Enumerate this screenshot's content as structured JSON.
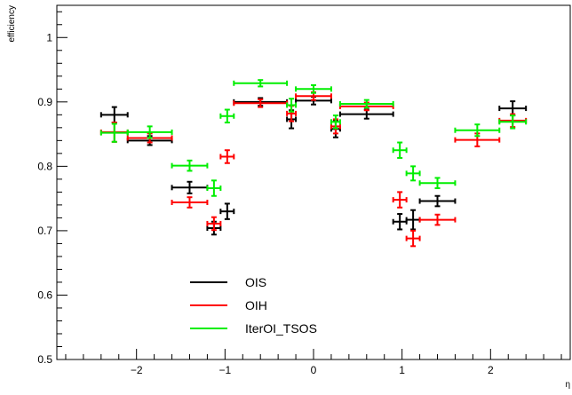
{
  "chart_data": {
    "type": "scatter",
    "title": "",
    "xlabel": "η",
    "ylabel": "efficiency",
    "xlim": [
      -2.9,
      2.9
    ],
    "ylim": [
      0.5,
      1.05
    ],
    "x_ticks": [
      -2,
      -1,
      0,
      1,
      2
    ],
    "x_tick_labels": [
      "−2",
      "−1",
      "0",
      "1",
      "2"
    ],
    "y_ticks": [
      0.5,
      0.6,
      0.7,
      0.8,
      0.9,
      1.0
    ],
    "y_tick_labels": [
      "0.5",
      "0.6",
      "0.7",
      "0.8",
      "0.9",
      "1"
    ],
    "grid": false,
    "legend_position": "bottom-left",
    "series": [
      {
        "name": "OIS",
        "color": "#000000",
        "points": [
          {
            "x": -2.25,
            "xerr": 0.15,
            "y": 0.88,
            "yerr": 0.012
          },
          {
            "x": -1.85,
            "xerr": 0.25,
            "y": 0.84,
            "yerr": 0.007
          },
          {
            "x": -1.4,
            "xerr": 0.2,
            "y": 0.767,
            "yerr": 0.009
          },
          {
            "x": -1.125,
            "xerr": 0.075,
            "y": 0.704,
            "yerr": 0.01
          },
          {
            "x": -0.975,
            "xerr": 0.075,
            "y": 0.73,
            "yerr": 0.012
          },
          {
            "x": -0.6,
            "xerr": 0.3,
            "y": 0.9,
            "yerr": 0.006
          },
          {
            "x": -0.25,
            "xerr": 0.05,
            "y": 0.873,
            "yerr": 0.014
          },
          {
            "x": 0.0,
            "xerr": 0.2,
            "y": 0.902,
            "yerr": 0.006
          },
          {
            "x": 0.25,
            "xerr": 0.05,
            "y": 0.858,
            "yerr": 0.013
          },
          {
            "x": 0.6,
            "xerr": 0.3,
            "y": 0.881,
            "yerr": 0.007
          },
          {
            "x": 0.975,
            "xerr": 0.075,
            "y": 0.714,
            "yerr": 0.012
          },
          {
            "x": 1.125,
            "xerr": 0.075,
            "y": 0.717,
            "yerr": 0.015
          },
          {
            "x": 1.4,
            "xerr": 0.2,
            "y": 0.746,
            "yerr": 0.008
          },
          {
            "x": 2.25,
            "xerr": 0.15,
            "y": 0.89,
            "yerr": 0.011
          }
        ]
      },
      {
        "name": "OIH",
        "color": "#ff0000",
        "points": [
          {
            "x": -2.25,
            "xerr": 0.15,
            "y": 0.853,
            "yerr": 0.015
          },
          {
            "x": -1.85,
            "xerr": 0.25,
            "y": 0.844,
            "yerr": 0.007
          },
          {
            "x": -1.4,
            "xerr": 0.2,
            "y": 0.744,
            "yerr": 0.008
          },
          {
            "x": -1.125,
            "xerr": 0.075,
            "y": 0.711,
            "yerr": 0.01
          },
          {
            "x": -0.975,
            "xerr": 0.075,
            "y": 0.815,
            "yerr": 0.01
          },
          {
            "x": -0.6,
            "xerr": 0.3,
            "y": 0.898,
            "yerr": 0.006
          },
          {
            "x": -0.25,
            "xerr": 0.05,
            "y": 0.882,
            "yerr": 0.012
          },
          {
            "x": 0.0,
            "xerr": 0.2,
            "y": 0.909,
            "yerr": 0.006
          },
          {
            "x": 0.25,
            "xerr": 0.05,
            "y": 0.862,
            "yerr": 0.011
          },
          {
            "x": 0.6,
            "xerr": 0.3,
            "y": 0.893,
            "yerr": 0.006
          },
          {
            "x": 0.975,
            "xerr": 0.075,
            "y": 0.748,
            "yerr": 0.012
          },
          {
            "x": 1.125,
            "xerr": 0.075,
            "y": 0.688,
            "yerr": 0.012
          },
          {
            "x": 1.4,
            "xerr": 0.2,
            "y": 0.717,
            "yerr": 0.008
          },
          {
            "x": 1.85,
            "xerr": 0.25,
            "y": 0.841,
            "yerr": 0.01
          },
          {
            "x": 2.25,
            "xerr": 0.15,
            "y": 0.871,
            "yerr": 0.01
          }
        ]
      },
      {
        "name": "IterOI_TSOS",
        "color": "#00ee00",
        "points": [
          {
            "x": -2.25,
            "xerr": 0.15,
            "y": 0.852,
            "yerr": 0.014
          },
          {
            "x": -1.85,
            "xerr": 0.25,
            "y": 0.853,
            "yerr": 0.009
          },
          {
            "x": -1.4,
            "xerr": 0.2,
            "y": 0.801,
            "yerr": 0.008
          },
          {
            "x": -1.125,
            "xerr": 0.075,
            "y": 0.766,
            "yerr": 0.012
          },
          {
            "x": -0.975,
            "xerr": 0.075,
            "y": 0.878,
            "yerr": 0.01
          },
          {
            "x": -0.6,
            "xerr": 0.3,
            "y": 0.929,
            "yerr": 0.005
          },
          {
            "x": -0.25,
            "xerr": 0.05,
            "y": 0.895,
            "yerr": 0.01
          },
          {
            "x": 0.0,
            "xerr": 0.2,
            "y": 0.92,
            "yerr": 0.006
          },
          {
            "x": 0.25,
            "xerr": 0.05,
            "y": 0.869,
            "yerr": 0.01
          },
          {
            "x": 0.6,
            "xerr": 0.3,
            "y": 0.897,
            "yerr": 0.006
          },
          {
            "x": 0.975,
            "xerr": 0.075,
            "y": 0.825,
            "yerr": 0.012
          },
          {
            "x": 1.125,
            "xerr": 0.075,
            "y": 0.789,
            "yerr": 0.011
          },
          {
            "x": 1.4,
            "xerr": 0.2,
            "y": 0.774,
            "yerr": 0.008
          },
          {
            "x": 1.85,
            "xerr": 0.25,
            "y": 0.856,
            "yerr": 0.009
          },
          {
            "x": 2.25,
            "xerr": 0.15,
            "y": 0.869,
            "yerr": 0.01
          }
        ]
      }
    ]
  }
}
